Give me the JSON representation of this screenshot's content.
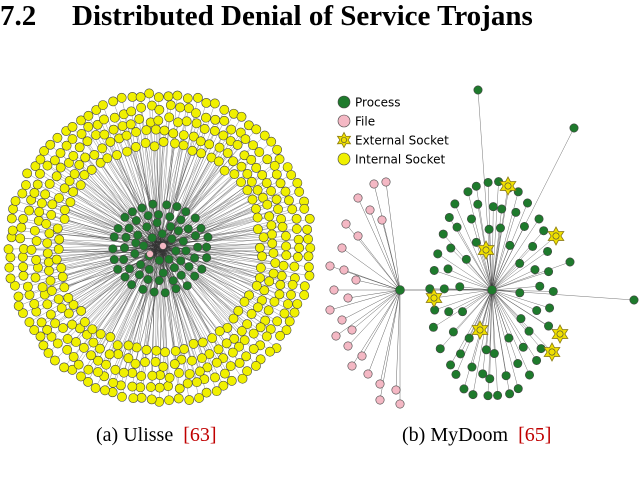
{
  "section": {
    "number": "7.2",
    "title": "Distributed Denial of Service Trojans"
  },
  "figure_a": {
    "caption": "(a) Ulisse",
    "ref": "[63]"
  },
  "figure_b": {
    "caption": "(b) MyDoom",
    "ref": "[65]",
    "legend": [
      {
        "label": "Process",
        "color": "#1e7a2c",
        "shape": "circle"
      },
      {
        "label": "File",
        "color": "#f4b8c4",
        "shape": "circle"
      },
      {
        "label": "External Socket",
        "color": "#f0e000",
        "shape": "star"
      },
      {
        "label": "Internal Socket",
        "color": "#f0f000",
        "shape": "circle"
      }
    ]
  },
  "colors": {
    "process": "#1e7a2c",
    "file": "#f4b8c4",
    "external_socket": "#f0e000",
    "internal_socket": "#f0f000",
    "edge": "#333333",
    "reference": "#c00000"
  }
}
